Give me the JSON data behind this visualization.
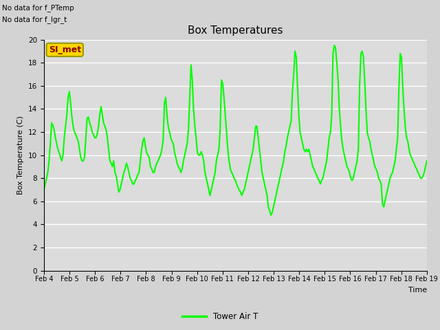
{
  "title": "Box Temperatures",
  "ylabel": "Box Temperature (C)",
  "xlabel": "Time",
  "ylim": [
    0,
    20
  ],
  "xlim": [
    0,
    360
  ],
  "line_color": "#00FF00",
  "line_width": 1.5,
  "plot_bg_color": "#DCDCDC",
  "fig_bg_color": "#D3D3D3",
  "no_data_text1": "No data for f_PTemp",
  "no_data_text2": "No data for f_lgr_t",
  "si_met_label": "SI_met",
  "si_met_bg": "#FFD700",
  "si_met_fg": "#8B0000",
  "si_met_border": "#999900",
  "legend_label": "Tower Air T",
  "x_tick_labels": [
    "Feb 4",
    "Feb 5",
    "Feb 6",
    "Feb 7",
    "Feb 8",
    "Feb 9",
    "Feb 10",
    "Feb 11",
    "Feb 12",
    "Feb 13",
    "Feb 14",
    "Feb 15",
    "Feb 16",
    "Feb 17",
    "Feb 18",
    "Feb 19"
  ],
  "x_ticks_pos": [
    0,
    24,
    48,
    72,
    96,
    120,
    144,
    168,
    192,
    216,
    240,
    264,
    288,
    312,
    336,
    360
  ],
  "y_ticks": [
    0,
    2,
    4,
    6,
    8,
    10,
    12,
    14,
    16,
    18,
    20
  ],
  "data_y": [
    7.0,
    7.5,
    8.0,
    8.5,
    9.5,
    11.0,
    12.8,
    12.6,
    12.2,
    11.5,
    11.0,
    10.5,
    10.2,
    9.8,
    9.5,
    10.0,
    11.5,
    12.5,
    13.5,
    15.0,
    15.5,
    14.5,
    13.3,
    12.5,
    12.0,
    11.8,
    11.5,
    11.2,
    10.5,
    9.8,
    9.5,
    9.5,
    9.8,
    11.5,
    13.2,
    13.3,
    12.8,
    12.5,
    12.0,
    11.8,
    11.5,
    11.5,
    11.8,
    12.5,
    13.5,
    14.2,
    13.5,
    12.8,
    12.5,
    12.2,
    11.5,
    10.5,
    9.5,
    9.3,
    9.0,
    9.5,
    8.5,
    8.2,
    7.5,
    6.8,
    7.0,
    7.5,
    8.0,
    8.5,
    8.8,
    9.3,
    9.0,
    8.5,
    8.0,
    7.8,
    7.5,
    7.5,
    7.8,
    8.0,
    8.3,
    8.5,
    9.5,
    10.5,
    11.2,
    11.5,
    10.8,
    10.2,
    10.0,
    9.8,
    9.0,
    8.8,
    8.5,
    8.5,
    9.0,
    9.3,
    9.5,
    9.8,
    10.0,
    10.5,
    11.3,
    14.5,
    15.0,
    13.5,
    12.5,
    12.0,
    11.5,
    11.2,
    11.0,
    10.2,
    9.8,
    9.3,
    9.0,
    8.8,
    8.5,
    8.8,
    9.5,
    10.0,
    10.5,
    11.0,
    12.3,
    15.0,
    17.8,
    16.5,
    14.0,
    12.5,
    11.5,
    10.2,
    10.0,
    10.0,
    10.3,
    10.0,
    9.5,
    8.5,
    8.0,
    7.5,
    7.0,
    6.5,
    7.0,
    7.5,
    8.0,
    8.5,
    9.5,
    10.0,
    10.5,
    12.3,
    16.5,
    16.2,
    15.0,
    13.5,
    12.0,
    10.5,
    9.5,
    8.8,
    8.5,
    8.3,
    8.0,
    7.8,
    7.5,
    7.2,
    7.0,
    6.8,
    6.5,
    6.8,
    7.0,
    7.5,
    8.0,
    8.5,
    9.0,
    9.5,
    10.0,
    10.5,
    11.5,
    12.5,
    12.5,
    11.5,
    10.5,
    9.5,
    8.5,
    8.0,
    7.5,
    7.0,
    6.5,
    5.5,
    5.2,
    4.8,
    5.0,
    5.5,
    6.0,
    6.5,
    7.0,
    7.5,
    8.0,
    8.5,
    9.0,
    9.5,
    10.3,
    10.8,
    11.5,
    12.0,
    12.5,
    13.0,
    15.5,
    17.0,
    19.0,
    18.5,
    16.0,
    13.5,
    12.0,
    11.5,
    11.0,
    10.5,
    10.3,
    10.5,
    10.3,
    10.5,
    10.0,
    9.5,
    9.0,
    8.8,
    8.5,
    8.3,
    8.0,
    7.8,
    7.5,
    7.8,
    8.0,
    8.5,
    9.0,
    9.5,
    10.5,
    11.5,
    12.0,
    13.5,
    18.8,
    19.5,
    19.3,
    18.0,
    16.5,
    14.0,
    12.5,
    11.2,
    10.5,
    10.0,
    9.5,
    9.0,
    8.8,
    8.5,
    8.0,
    7.8,
    8.0,
    8.5,
    9.0,
    9.5,
    10.5,
    16.0,
    18.8,
    19.0,
    18.5,
    16.5,
    14.0,
    12.0,
    11.5,
    11.2,
    10.5,
    10.0,
    9.5,
    9.0,
    8.8,
    8.5,
    8.0,
    7.8,
    7.5,
    5.8,
    5.5,
    6.0,
    6.5,
    7.0,
    7.5,
    8.0,
    8.3,
    8.5,
    9.0,
    9.5,
    10.5,
    11.5,
    15.8,
    18.8,
    18.5,
    16.0,
    14.0,
    12.5,
    11.5,
    11.2,
    10.5,
    10.0,
    9.8,
    9.5,
    9.3,
    9.0,
    8.8,
    8.5,
    8.3,
    8.0,
    8.0,
    8.2,
    8.5,
    9.0,
    9.5
  ]
}
